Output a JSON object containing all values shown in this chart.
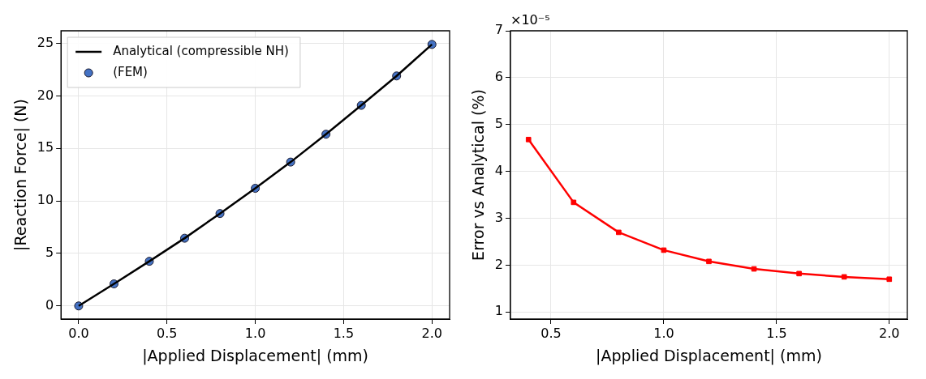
{
  "chart_data": [
    {
      "type": "line",
      "xlabel": "|Applied Displacement| (mm)",
      "ylabel": "|Reaction Force| (N)",
      "x": [
        0,
        0.2,
        0.4,
        0.6,
        0.8,
        1.0,
        1.2,
        1.4,
        1.6,
        1.8,
        2.0
      ],
      "series": [
        {
          "name": "Analytical (compressible NH)",
          "type": "line",
          "color": "#000000",
          "marker": "none",
          "values": [
            0,
            2.1,
            4.25,
            6.45,
            8.8,
            11.2,
            13.7,
            16.35,
            19.1,
            21.9,
            24.9
          ]
        },
        {
          "name": "(FEM)",
          "type": "scatter",
          "color": "#4472c4",
          "marker": "circle",
          "values": [
            0,
            2.1,
            4.25,
            6.45,
            8.8,
            11.2,
            13.7,
            16.35,
            19.1,
            21.9,
            24.9
          ]
        }
      ],
      "xlim": [
        -0.1,
        2.1
      ],
      "xticks": [
        {
          "value": 0,
          "label": "0.0"
        },
        {
          "value": 0.5,
          "label": "0.5"
        },
        {
          "value": 1,
          "label": "1.0"
        },
        {
          "value": 1.5,
          "label": "1.5"
        },
        {
          "value": 2,
          "label": "2.0"
        }
      ],
      "ylim": [
        -1.25,
        26.2
      ],
      "yticks": [
        0,
        5,
        10,
        15,
        20,
        25
      ],
      "grid": true,
      "legend": "top left"
    },
    {
      "type": "line",
      "xlabel": "|Applied Displacement| (mm)",
      "ylabel": "Error vs Analytical (%)",
      "annotations": [
        "×10⁻⁵"
      ],
      "x": [
        0.4,
        0.6,
        0.8,
        1.0,
        1.2,
        1.4,
        1.6,
        1.8,
        2.0
      ],
      "series": [
        {
          "color": "#ff0000",
          "marker": "square",
          "values": [
            4.68,
            3.34,
            2.7,
            2.32,
            2.08,
            1.92,
            1.82,
            1.75,
            1.7
          ]
        }
      ],
      "xlim": [
        0.32,
        2.08
      ],
      "xticks": [
        0.5,
        {
          "value": 1,
          "label": "1.0"
        },
        1.5,
        {
          "value": 2,
          "label": "2.0"
        }
      ],
      "ylim": [
        0.85,
        7
      ],
      "yticks": [
        1,
        2,
        3,
        4,
        5,
        6,
        7
      ],
      "grid": true,
      "legend": false
    }
  ]
}
